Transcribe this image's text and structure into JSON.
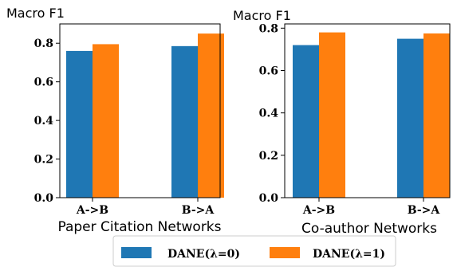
{
  "chart_data": [
    {
      "type": "bar",
      "categories": [
        "A->B",
        "B->A"
      ],
      "series": [
        {
          "name": "DANE(λ=0)",
          "values": [
            0.76,
            0.785
          ]
        },
        {
          "name": "DANE(λ=1)",
          "values": [
            0.795,
            0.85
          ]
        }
      ],
      "ylabel": "Macro F1",
      "xlabel": "Paper Citation Networks",
      "ylim": [
        0,
        0.9
      ],
      "yticks": [
        "0.0",
        "0.2",
        "0.4",
        "0.6",
        "0.8"
      ],
      "grid": false,
      "legend": "bottom-center"
    },
    {
      "type": "bar",
      "categories": [
        "A->B",
        "B->A"
      ],
      "series": [
        {
          "name": "DANE(λ=0)",
          "values": [
            0.72,
            0.75
          ]
        },
        {
          "name": "DANE(λ=1)",
          "values": [
            0.78,
            0.775
          ]
        }
      ],
      "ylabel": "Macro F1",
      "xlabel": "Co-author Networks",
      "ylim": [
        0,
        0.82
      ],
      "yticks": [
        "0.0",
        "0.2",
        "0.4",
        "0.6",
        "0.8"
      ],
      "grid": false,
      "legend": "bottom-center"
    }
  ],
  "legend": {
    "items": [
      {
        "label": "DANE(λ=0)",
        "color": "#1f77b4"
      },
      {
        "label": "DANE(λ=1)",
        "color": "#ff7f0e"
      }
    ]
  },
  "colors": [
    "#1f77b4",
    "#ff7f0e"
  ]
}
